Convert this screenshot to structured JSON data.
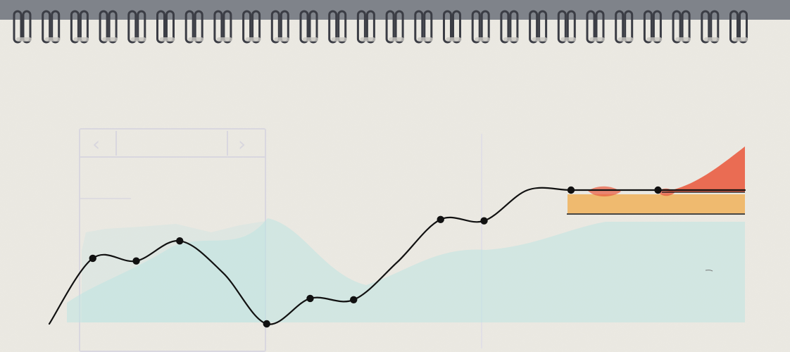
{
  "sketch": {
    "type": "notebook-sketch",
    "paper_color": "#ebe9e2",
    "binding": {
      "type": "spiral",
      "coil_count": 26,
      "metal_color": "#3b3d45"
    },
    "phone_wireframe": {
      "title_placeholder": "",
      "detail_lines": [
        "",
        ""
      ]
    },
    "note": {
      "lines": [
        "",
        "",
        ""
      ]
    },
    "zones": {
      "orange_color": "#f0b25a",
      "red_color": "#e95a3f",
      "teal_color": "#bde3e1",
      "line_color": "#111111"
    },
    "chart_data": {
      "type": "line",
      "title": "",
      "xlabel": "",
      "ylabel": "",
      "x": [
        0,
        1,
        2,
        3,
        4,
        5,
        6,
        7,
        8,
        9,
        10,
        11,
        12,
        13,
        14,
        15,
        16
      ],
      "values": [
        0.0,
        0.49,
        0.47,
        0.62,
        0.38,
        0.0,
        0.19,
        0.18,
        0.46,
        0.78,
        0.77,
        1.0,
        1.0,
        1.0,
        1.0,
        1.0,
        1.0
      ],
      "marked_points": [
        {
          "index": 1,
          "value": 0.49
        },
        {
          "index": 2,
          "value": 0.47
        },
        {
          "index": 3,
          "value": 0.62
        },
        {
          "index": 5,
          "value": 0.0
        },
        {
          "index": 6,
          "value": 0.19
        },
        {
          "index": 7,
          "value": 0.18
        },
        {
          "index": 9,
          "value": 0.78
        },
        {
          "index": 10,
          "value": 0.77
        },
        {
          "index": 12,
          "value": 1.0
        },
        {
          "index": 14,
          "value": 1.0
        }
      ]
    }
  }
}
